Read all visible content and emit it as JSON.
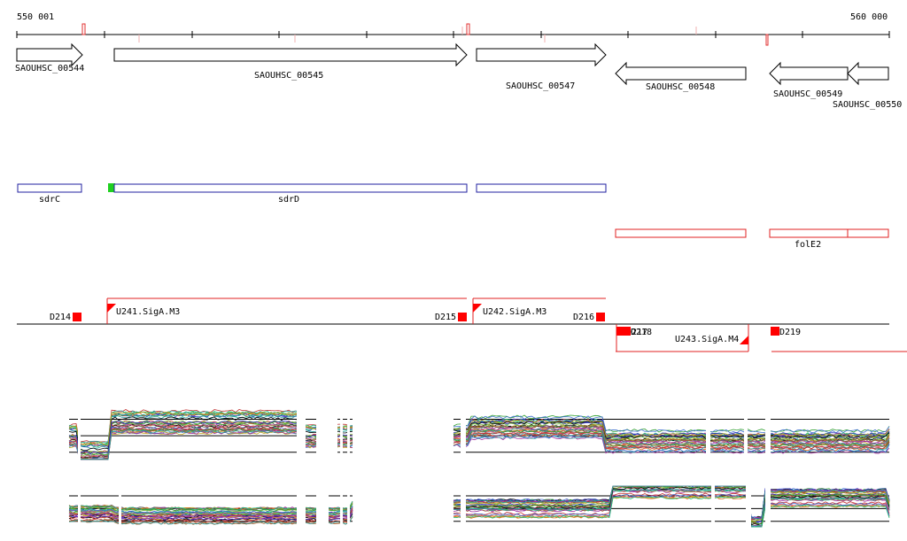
{
  "ruler": {
    "start_label": "550 001",
    "end_label": "560 000"
  },
  "genes": [
    {
      "id": "SAOUHSC_00544",
      "strand": "+"
    },
    {
      "id": "SAOUHSC_00545",
      "strand": "+"
    },
    {
      "id": "SAOUHSC_00547",
      "strand": "+"
    },
    {
      "id": "SAOUHSC_00548",
      "strand": "-"
    },
    {
      "id": "SAOUHSC_00549",
      "strand": "-"
    },
    {
      "id": "SAOUHSC_00550",
      "strand": "-"
    }
  ],
  "features": [
    {
      "name": "sdrC"
    },
    {
      "name": "sdrD"
    },
    {
      "name": "folE2"
    }
  ],
  "segments": [
    {
      "name": "D214"
    },
    {
      "name": "D215"
    },
    {
      "name": "D216"
    },
    {
      "name": "D217"
    },
    {
      "name": "D218"
    },
    {
      "name": "D219"
    }
  ],
  "transcription_units": [
    {
      "name": "U241.SigA.M3",
      "strand": "+"
    },
    {
      "name": "U242.SigA.M3",
      "strand": "+"
    },
    {
      "name": "U243.SigA.M4",
      "strand": "-"
    }
  ],
  "colors": {
    "axis": "#000000",
    "feature_blue": "#2020a0",
    "feature_red": "#e02020",
    "marker_green": "#20d020",
    "segment_red": "#ff0000"
  }
}
